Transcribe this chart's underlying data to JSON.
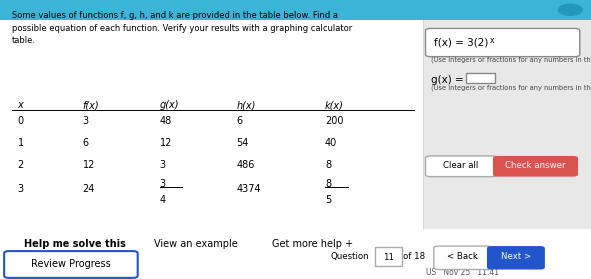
{
  "bg_color": "#3ab5d8",
  "title_text": "Some values of functions f, g, h, and k are provided in the table below. Find a\npossible equation of each function. Verify your results with a graphing calculator\ntable.",
  "table_headers": [
    "x",
    "f(x)",
    "g(x)",
    "h(x)",
    "k(x)"
  ],
  "table_rows": [
    [
      "0",
      "3",
      "48",
      "6",
      "200"
    ],
    [
      "1",
      "6",
      "12",
      "54",
      "40"
    ],
    [
      "2",
      "12",
      "3",
      "486",
      "8"
    ],
    [
      "3",
      "24",
      "3/4",
      "4374",
      "8/5"
    ]
  ],
  "fx_note": "(Use integers or fractions for any numbers in the expression.)",
  "gx_note": "(Use integers or fractions for any numbers in the expression.)",
  "bottom_links": [
    "Help me solve this",
    "View an example",
    "Get more help +"
  ],
  "question_label": "Question",
  "question_num": "11",
  "question_of": "of 18",
  "back_btn": "< Back",
  "next_btn": "Next >",
  "clear_btn": "Clear all",
  "check_btn": "Check answer",
  "review_btn": "Review Progress",
  "footer_text": "US   Nov 25   11:41"
}
